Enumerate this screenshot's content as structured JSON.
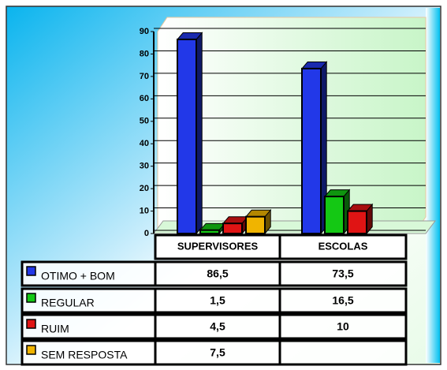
{
  "chart_data": {
    "type": "bar3d",
    "categories": [
      "SUPERVISORES",
      "ESCOLAS"
    ],
    "series": [
      {
        "name": "OTIMO + BOM",
        "color": "#2238e8",
        "values": [
          86.5,
          73.5
        ],
        "value_labels": [
          "86,5",
          "73,5"
        ]
      },
      {
        "name": "REGULAR",
        "color": "#14c814",
        "values": [
          1.5,
          16.5
        ],
        "value_labels": [
          "1,5",
          "16,5"
        ]
      },
      {
        "name": "RUIM",
        "color": "#e01414",
        "values": [
          4.5,
          10
        ],
        "value_labels": [
          "4,5",
          "10"
        ]
      },
      {
        "name": "SEM RESPOSTA",
        "color": "#f0b400",
        "values": [
          7.5,
          null
        ],
        "value_labels": [
          "7,5",
          null
        ]
      }
    ],
    "ylim": [
      0,
      90
    ],
    "yticks": [
      0,
      10,
      20,
      30,
      40,
      50,
      60,
      70,
      80,
      90
    ],
    "grid": true
  }
}
